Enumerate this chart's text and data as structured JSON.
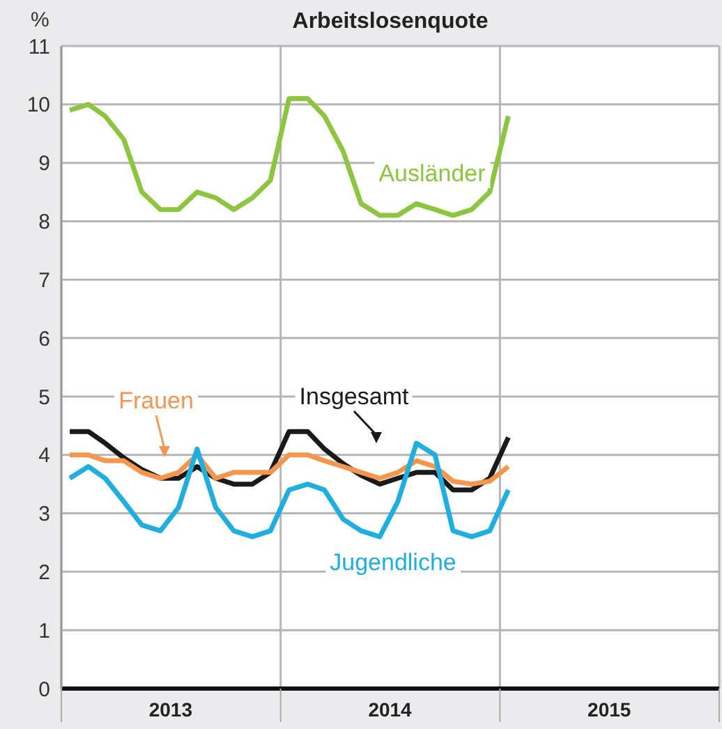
{
  "chart_data": {
    "type": "line",
    "title": "Arbeitslosenquote",
    "ylabel": "%",
    "x": [
      "2013-01-15",
      "2013-02-15",
      "2013-03-15",
      "2013-04-15",
      "2013-05-15",
      "2013-06-15",
      "2013-07-15",
      "2013-08-15",
      "2013-09-15",
      "2013-10-15",
      "2013-11-15",
      "2013-12-15",
      "2014-01-15",
      "2014-02-15",
      "2014-03-15",
      "2014-04-15",
      "2014-05-15",
      "2014-06-15",
      "2014-07-15",
      "2014-08-15",
      "2014-09-15",
      "2014-10-15",
      "2014-11-15",
      "2014-12-15",
      "2015-01-15"
    ],
    "series": [
      {
        "name": "Ausländer",
        "color": "#8cc63e",
        "values": [
          9.9,
          10.0,
          9.8,
          9.4,
          8.5,
          8.2,
          8.2,
          8.5,
          8.4,
          8.2,
          8.4,
          8.7,
          10.1,
          10.1,
          9.8,
          9.2,
          8.3,
          8.1,
          8.1,
          8.3,
          8.2,
          8.1,
          8.2,
          8.5,
          9.8
        ]
      },
      {
        "name": "Insgesamt",
        "color": "#1a1a1a",
        "values": [
          4.4,
          4.4,
          4.2,
          3.95,
          3.75,
          3.6,
          3.6,
          3.8,
          3.6,
          3.5,
          3.5,
          3.7,
          4.4,
          4.4,
          4.1,
          3.85,
          3.65,
          3.5,
          3.6,
          3.7,
          3.7,
          3.4,
          3.4,
          3.6,
          4.3
        ]
      },
      {
        "name": "Frauen",
        "color": "#f5964c",
        "values": [
          4.0,
          4.0,
          3.9,
          3.9,
          3.7,
          3.6,
          3.7,
          4.0,
          3.6,
          3.7,
          3.7,
          3.7,
          4.0,
          4.0,
          3.9,
          3.8,
          3.7,
          3.6,
          3.7,
          3.9,
          3.8,
          3.55,
          3.5,
          3.55,
          3.8
        ]
      },
      {
        "name": "Jugendliche",
        "color": "#1eaee0",
        "values": [
          3.6,
          3.8,
          3.6,
          3.2,
          2.8,
          2.7,
          3.1,
          4.1,
          3.1,
          2.7,
          2.6,
          2.7,
          3.4,
          3.5,
          3.4,
          2.9,
          2.7,
          2.6,
          3.2,
          4.2,
          4.0,
          2.7,
          2.6,
          2.7,
          3.4
        ]
      }
    ],
    "xlim": [
      "2013-01-01",
      "2016-01-01"
    ],
    "xticks": [
      {
        "value": "2013-01-01",
        "label": null
      },
      {
        "value": "2013-07-02",
        "label": "2013"
      },
      {
        "value": "2014-01-01",
        "label": null
      },
      {
        "value": "2014-07-02",
        "label": "2014"
      },
      {
        "value": "2015-01-01",
        "label": null
      },
      {
        "value": "2015-07-02",
        "label": "2015"
      },
      {
        "value": "2016-01-01",
        "label": null
      }
    ],
    "ylim": [
      0,
      11
    ],
    "yticks": [
      0,
      1,
      2,
      3,
      4,
      5,
      6,
      7,
      8,
      9,
      10,
      11
    ],
    "grid": true,
    "legend": false,
    "marker": "none",
    "line_style": "solid"
  }
}
